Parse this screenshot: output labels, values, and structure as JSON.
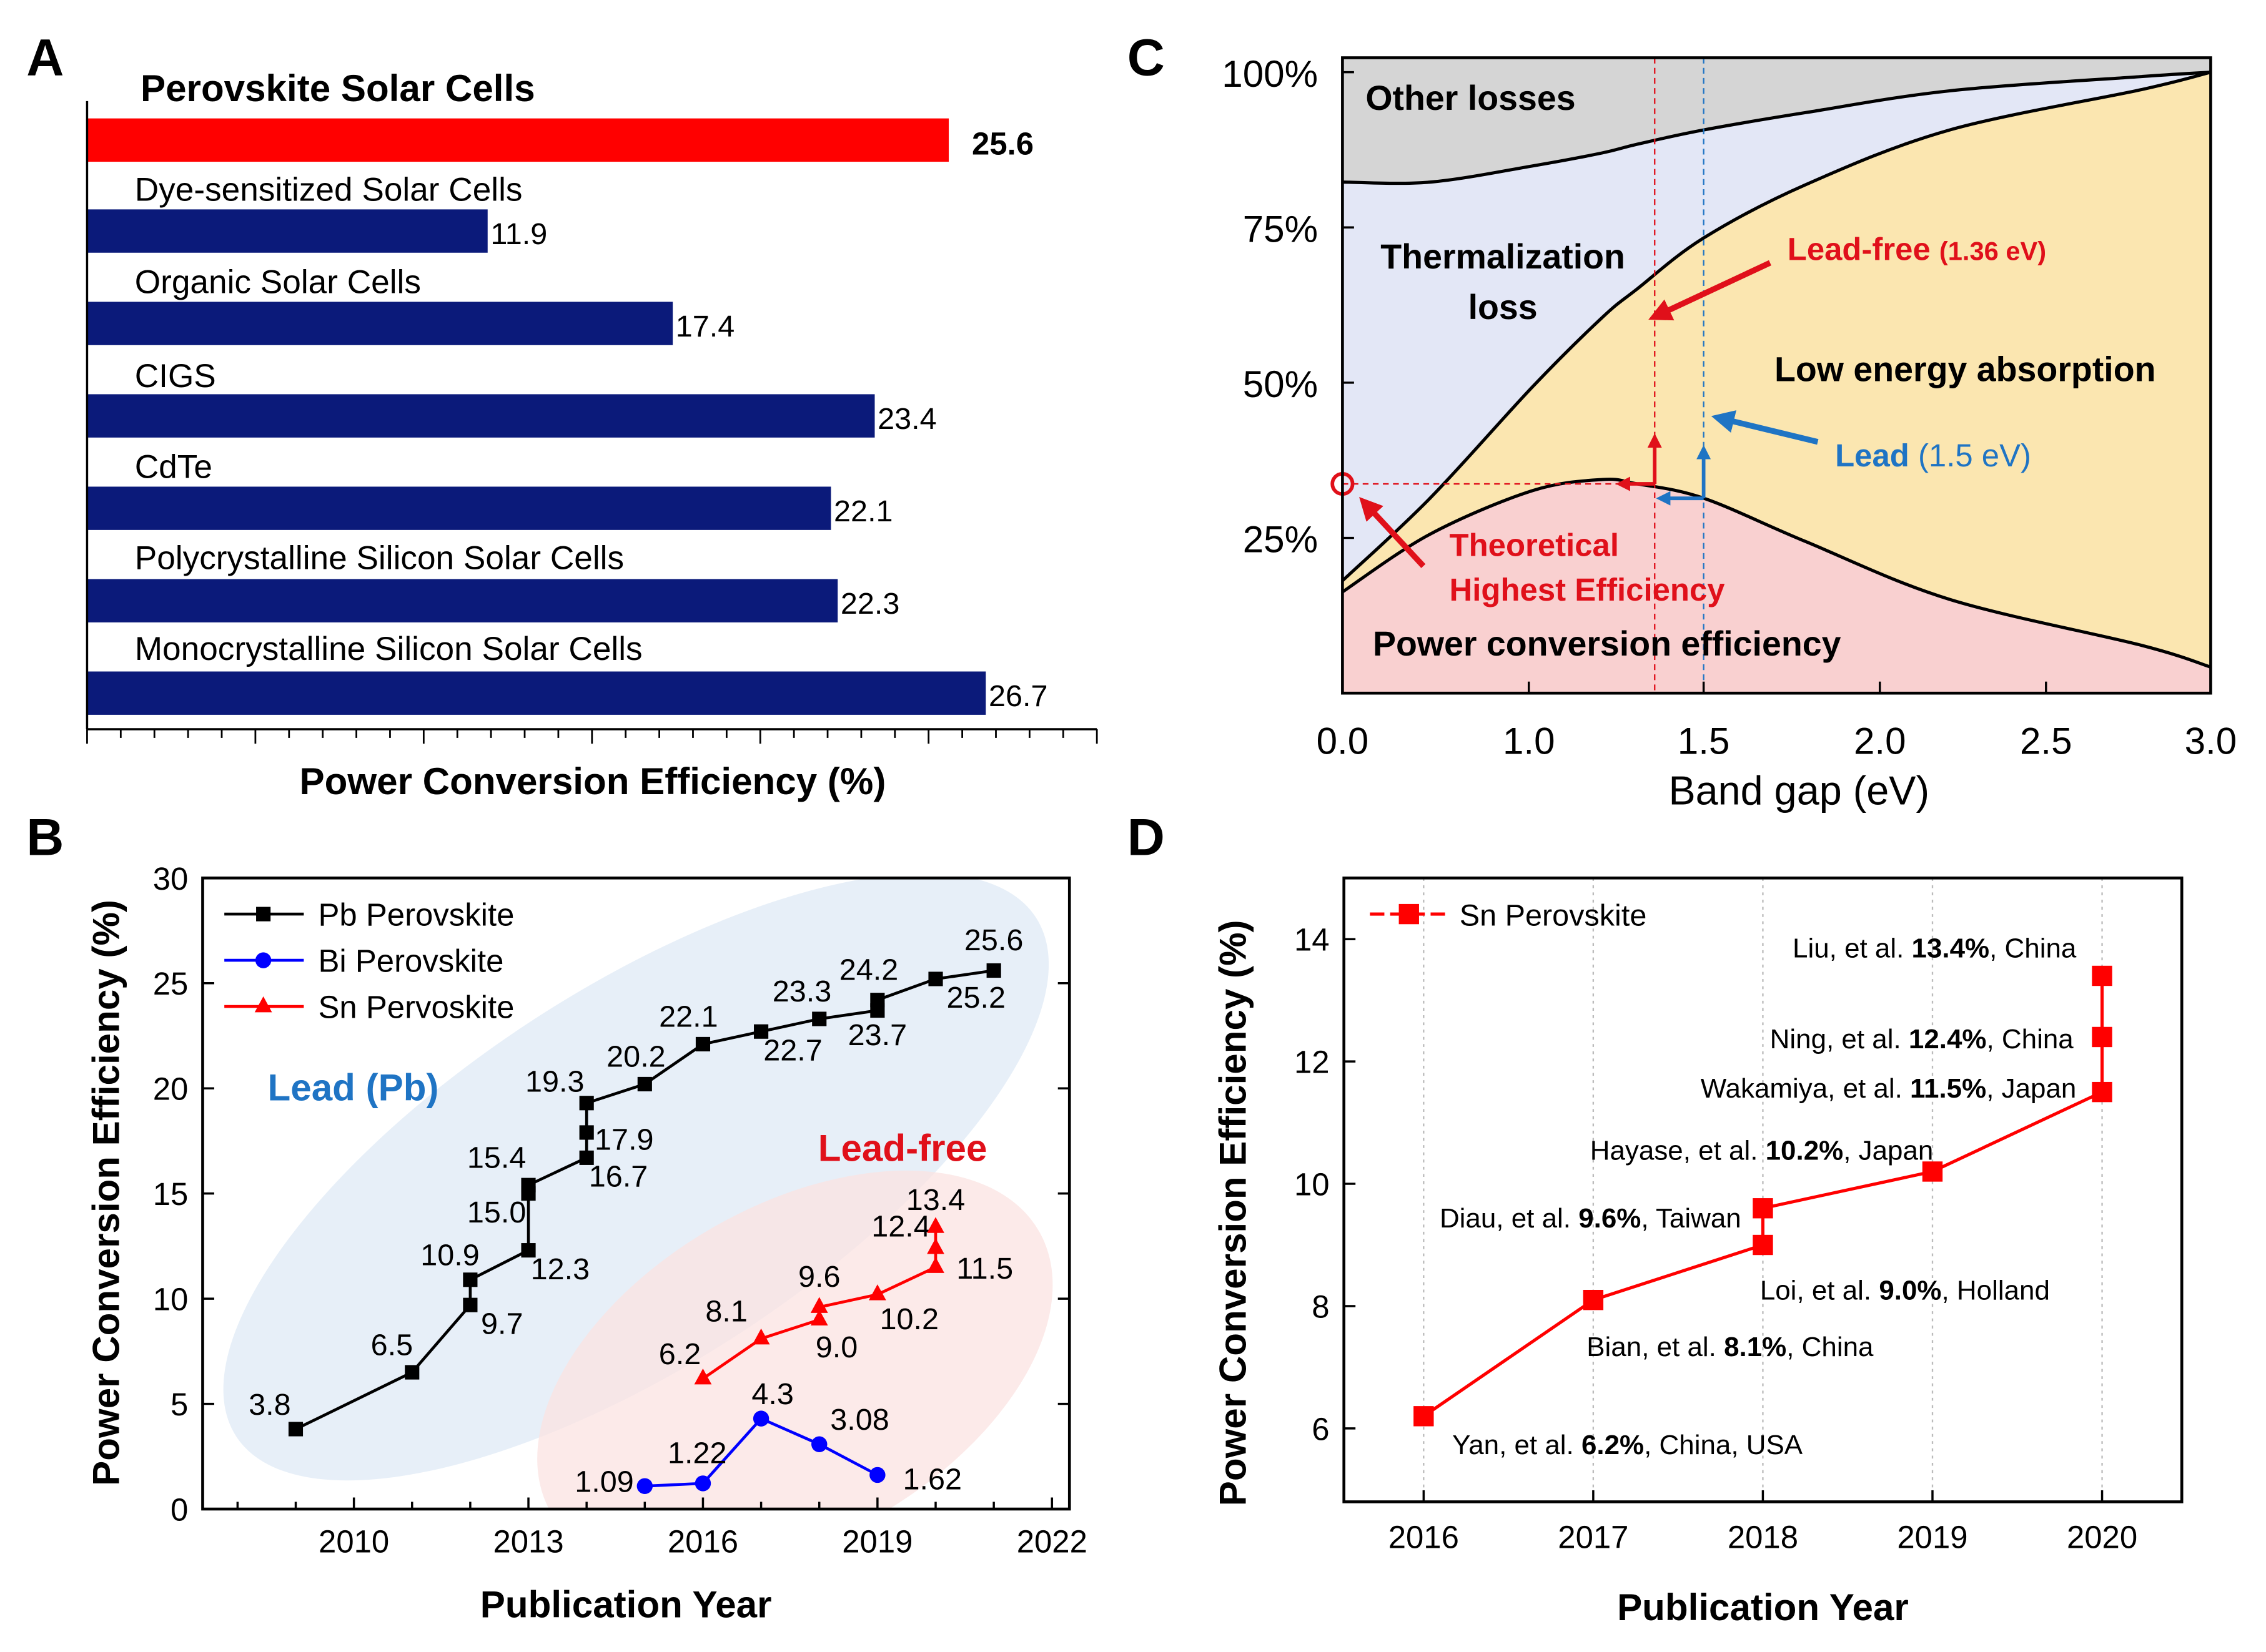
{
  "panel_labels": [
    "A",
    "B",
    "C",
    "D"
  ],
  "chart_data": [
    {
      "panel": "A",
      "type": "bar",
      "orientation": "horizontal",
      "categories": [
        "Perovskite Solar Cells",
        "Dye-sensitized Solar Cells",
        "Organic Solar Cells",
        "CIGS",
        "CdTe",
        "Polycrystalline Silicon Solar Cells",
        "Monocrystalline Silicon Solar Cells"
      ],
      "values": [
        25.6,
        11.9,
        17.4,
        23.4,
        22.1,
        22.3,
        26.7
      ],
      "value_labels": [
        "25.6",
        "11.9",
        "17.4",
        "23.4",
        "22.1",
        "22.3",
        "26.7"
      ],
      "colors": [
        "#ff0000",
        "#0b1a7a",
        "#0b1a7a",
        "#0b1a7a",
        "#0b1a7a",
        "#0b1a7a",
        "#0b1a7a"
      ],
      "xlabel": "Power Conversion Efficiency (%)",
      "xlim": [
        0,
        30
      ],
      "grid": false
    },
    {
      "panel": "B",
      "type": "line",
      "xlabel": "Publication Year",
      "ylabel": "Power Conversion Efficiency (%)",
      "xlim": [
        2007.4,
        2022.3
      ],
      "ylim": [
        0,
        30
      ],
      "xticks": [
        "2010",
        "2013",
        "2016",
        "2019",
        "2022"
      ],
      "yticks": [
        "0",
        "5",
        "10",
        "15",
        "20",
        "25",
        "30"
      ],
      "legend": "top-left",
      "series": [
        {
          "name": "Pb Perovskite",
          "color": "#000000",
          "marker": "square",
          "x": [
            2009,
            2011,
            2012,
            2012,
            2013,
            2013,
            2013,
            2014,
            2014,
            2014,
            2015,
            2016,
            2017,
            2018,
            2019,
            2019,
            2020,
            2021
          ],
          "y": [
            3.8,
            6.5,
            9.7,
            10.9,
            12.3,
            15.0,
            15.4,
            16.7,
            17.9,
            19.3,
            20.2,
            22.1,
            22.7,
            23.3,
            23.7,
            24.2,
            25.2,
            25.6
          ],
          "labels": [
            "3.8",
            "6.5",
            "9.7",
            "10.9",
            "12.3",
            "15.0",
            "15.4",
            "16.7",
            "17.9",
            "19.3",
            "20.2",
            "22.1",
            "22.7",
            "23.3",
            "23.7",
            "24.2",
            "25.2",
            "25.6"
          ]
        },
        {
          "name": "Bi  Perovskite",
          "color": "#0000ff",
          "marker": "circle",
          "x": [
            2015,
            2016,
            2017,
            2018,
            2019
          ],
          "y": [
            1.09,
            1.22,
            4.3,
            3.08,
            1.62
          ],
          "labels": [
            "1.09",
            "1.22",
            "4.3",
            "3.08",
            "1.62"
          ]
        },
        {
          "name": "Sn Pervoskite",
          "color": "#ff0000",
          "marker": "triangle",
          "x": [
            2016,
            2017,
            2018,
            2018,
            2019,
            2020,
            2020,
            2020
          ],
          "y": [
            6.2,
            8.1,
            9.0,
            9.6,
            10.2,
            11.5,
            12.4,
            13.4
          ],
          "labels": [
            "6.2",
            "8.1",
            "9.0",
            "9.6",
            "10.2",
            "11.5",
            "12.4",
            "13.4"
          ]
        }
      ],
      "annotations": [
        {
          "text": "Lead (Pb)",
          "color": "#1f74c4"
        },
        {
          "text": "Lead-free",
          "color": "#e0101a"
        }
      ]
    },
    {
      "panel": "C",
      "type": "area",
      "xlabel": "Band gap (eV)",
      "xlim": [
        0,
        3.0
      ],
      "ylim": [
        "0%",
        "100%"
      ],
      "xticks": [
        "0.0",
        "1.0",
        "1.5",
        "2.0",
        "2.5",
        "3.0"
      ],
      "yticks": [
        "25%",
        "50%",
        "75%",
        "100%"
      ],
      "x": [
        0,
        0.47,
        1.01,
        1.21,
        1.31,
        1.5,
        1.79,
        2.21,
        2.79,
        3.0
      ],
      "series": [
        {
          "name": "Power conversion efficiency",
          "color": "#f9d0d0",
          "y": [
            16.3,
            25.6,
            32.6,
            34.4,
            33.7,
            31.4,
            24.4,
            15.1,
            7.7,
            4.2
          ]
        },
        {
          "name": "Low energy absorption",
          "color": "#fbe6b0",
          "y_upper": [
            18.1,
            31.4,
            49.3,
            60.5,
            65.1,
            73.3,
            81.9,
            90.7,
            97.2,
            100
          ]
        },
        {
          "name": "Thermalization loss",
          "color": "#e3e7f6",
          "y_upper": [
            82.3,
            82.3,
            84.9,
            87,
            88.4,
            90.7,
            93.5,
            97,
            99.3,
            100
          ]
        },
        {
          "name": "Other losses",
          "color": "#d5d5d5",
          "y_upper": [
            100,
            100,
            100,
            100,
            100,
            100,
            100,
            100,
            100,
            100
          ]
        }
      ],
      "region_labels": {
        "other": "Other losses",
        "thermal_1": "Thermalization",
        "thermal_2": "loss",
        "low": "Low energy absorption",
        "pce": "Power conversion efficiency"
      },
      "annotations": {
        "lead_free": "Lead-free",
        "lead_free_gap": "(1.36 eV)",
        "lead_free_x": 1.36,
        "lead": "Lead",
        "lead_gap": "(1.5 eV)",
        "lead_x": 1.5,
        "theoretical_1": "Theoretical",
        "theoretical_2": "Highest Efficiency",
        "red": "#e0101a",
        "blue": "#1f74c4"
      }
    },
    {
      "panel": "D",
      "type": "line",
      "xlabel": "Publication Year",
      "ylabel": "Power Conversion Efficiency (%)",
      "xlim": [
        2015.53,
        2020.47
      ],
      "ylim": [
        4.8,
        15
      ],
      "xticks": [
        "2016",
        "2017",
        "2018",
        "2019",
        "2020"
      ],
      "yticks": [
        "6",
        "8",
        "10",
        "12",
        "14"
      ],
      "grid": "vertical dotted",
      "legend": "top-left",
      "series": [
        {
          "name": "Sn Perovskite",
          "color": "#ff0000",
          "marker": "square",
          "x": [
            2016,
            2017,
            2018,
            2018,
            2019,
            2020,
            2020,
            2020
          ],
          "y": [
            6.2,
            8.1,
            9.0,
            9.6,
            10.2,
            11.5,
            12.4,
            13.4
          ]
        }
      ],
      "annotations": [
        {
          "pre": "Yan, et al. ",
          "bold": "6.2%",
          "post": ", China, USA"
        },
        {
          "pre": "Bian, et al. ",
          "bold": "8.1%",
          "post": ", China"
        },
        {
          "pre": "Loi, et al. ",
          "bold": "9.0%",
          "post": ", Holland"
        },
        {
          "pre": "Diau, et al. ",
          "bold": "9.6%",
          "post": ", Taiwan"
        },
        {
          "pre": "Hayase, et al. ",
          "bold": "10.2%",
          "post": ", Japan"
        },
        {
          "pre": "Wakamiya, et al. ",
          "bold": "11.5%",
          "post": ", Japan"
        },
        {
          "pre": "Ning, et al. ",
          "bold": "12.4%",
          "post": ", China"
        },
        {
          "pre": "Liu, et al. ",
          "bold": "13.4%",
          "post": ", China"
        }
      ]
    }
  ]
}
